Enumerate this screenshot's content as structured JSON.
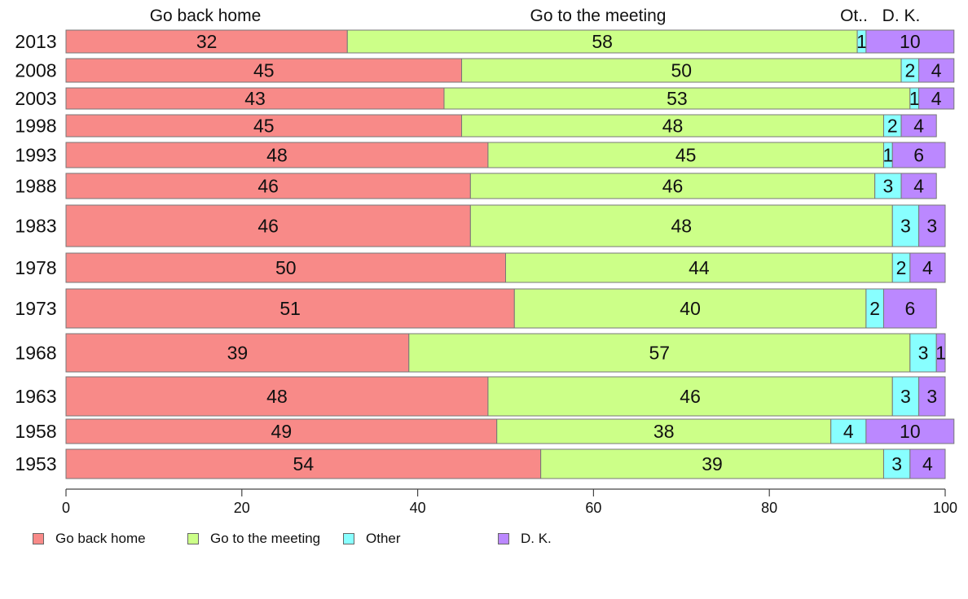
{
  "chart_data": {
    "type": "bar",
    "orientation": "horizontal",
    "stacked": true,
    "xlim": [
      0,
      100
    ],
    "x_ticks": [
      "0",
      "20",
      "40",
      "60",
      "80",
      "100"
    ],
    "column_headers": [
      "Go back home",
      "Go to the meeting",
      "Ot..",
      "D. K."
    ],
    "categories": [
      "2013",
      "2008",
      "2003",
      "1998",
      "1993",
      "1988",
      "1983",
      "1978",
      "1973",
      "1968",
      "1963",
      "1958",
      "1953"
    ],
    "series": [
      {
        "name": "Go back home",
        "color": "#f88a88",
        "values": [
          32,
          45,
          43,
          45,
          48,
          46,
          46,
          50,
          51,
          39,
          48,
          49,
          54
        ]
      },
      {
        "name": "Go to the meeting",
        "color": "#ccff88",
        "values": [
          58,
          50,
          53,
          48,
          45,
          46,
          48,
          44,
          40,
          57,
          46,
          38,
          39
        ]
      },
      {
        "name": "Other",
        "color": "#88ffff",
        "values": [
          1,
          2,
          1,
          2,
          1,
          3,
          3,
          2,
          2,
          3,
          3,
          4,
          3
        ]
      },
      {
        "name": "D. K.",
        "color": "#bb88ff",
        "values": [
          10,
          4,
          4,
          4,
          6,
          4,
          3,
          4,
          6,
          1,
          3,
          10,
          4
        ]
      }
    ],
    "legend_position": "bottom-left",
    "grid": false
  }
}
